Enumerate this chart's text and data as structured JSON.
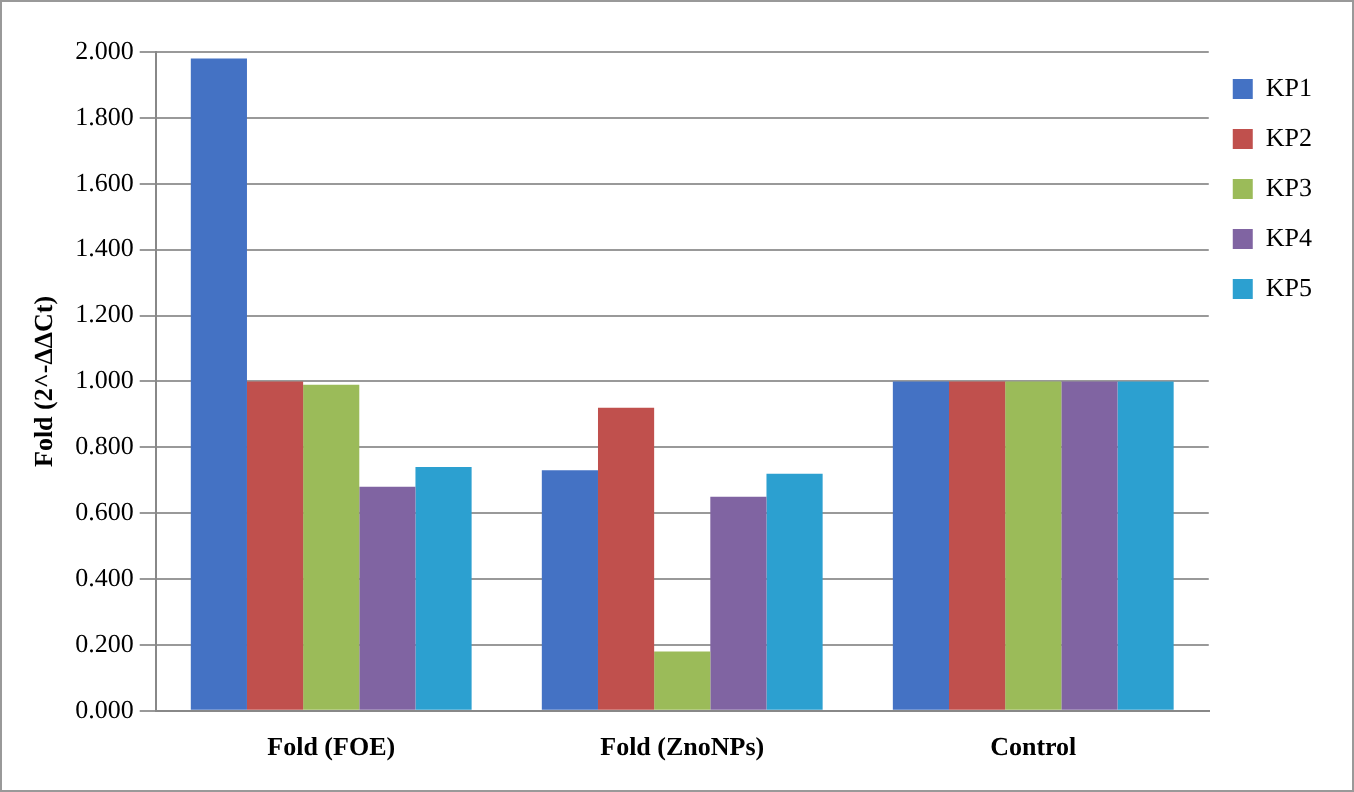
{
  "chart_data": {
    "type": "bar",
    "ylabel": "Fold (2^-ΔΔCt)",
    "categories": [
      "Fold (FOE)",
      "Fold (ZnoNPs)",
      "Control"
    ],
    "series": [
      {
        "name": "KP1",
        "color": "#4472c4",
        "values": [
          1.98,
          0.73,
          1.0
        ]
      },
      {
        "name": "KP2",
        "color": "#c0504d",
        "values": [
          1.0,
          0.92,
          1.0
        ]
      },
      {
        "name": "KP3",
        "color": "#9bbb59",
        "values": [
          0.99,
          0.18,
          1.0
        ]
      },
      {
        "name": "KP4",
        "color": "#8064a2",
        "values": [
          0.68,
          0.65,
          1.0
        ]
      },
      {
        "name": "KP5",
        "color": "#2ca0d0",
        "values": [
          0.74,
          0.72,
          1.0
        ]
      }
    ],
    "ylim": [
      0,
      2
    ],
    "yticks": [
      {
        "value": 0,
        "label": "0.000"
      },
      {
        "value": 0.2,
        "label": "0.200"
      },
      {
        "value": 0.4,
        "label": "0.400"
      },
      {
        "value": 0.6,
        "label": "0.600"
      },
      {
        "value": 0.8,
        "label": "0.800"
      },
      {
        "value": 1,
        "label": "1.000"
      },
      {
        "value": 1.2,
        "label": "1.200"
      },
      {
        "value": 1.4,
        "label": "1.400"
      },
      {
        "value": 1.6,
        "label": "1.600"
      },
      {
        "value": 1.8,
        "label": "1.800"
      },
      {
        "value": 2,
        "label": "2.000"
      }
    ],
    "grid": "y",
    "legend": "right"
  }
}
